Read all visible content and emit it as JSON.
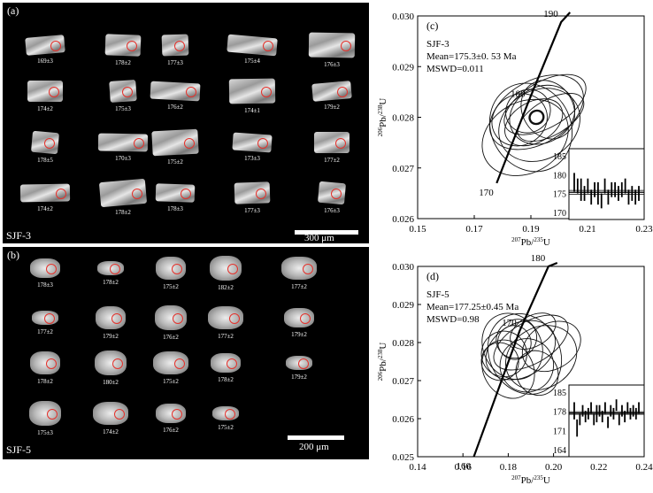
{
  "panel_a": {
    "label": "(a)",
    "sample": "SJF-3",
    "scale": "300 μm",
    "rows": [
      [
        "169±3",
        "178±2",
        "177±3",
        "175±4",
        "176±3"
      ],
      [
        "174±2",
        "175±3",
        "176±2",
        "174±1",
        "179±2"
      ],
      [
        "178±5",
        "170±3",
        "175±2",
        "173±3",
        "177±2"
      ],
      [
        "174±2",
        "178±2",
        "178±3",
        "177±3",
        "176±3"
      ]
    ]
  },
  "panel_b": {
    "label": "(b)",
    "sample": "SJF-5",
    "scale": "200 μm",
    "rows": [
      [
        "178±3",
        "178±2",
        "175±2",
        "182±2",
        "177±2"
      ],
      [
        "177±2",
        "179±2",
        "176±2",
        "177±2",
        "179±2"
      ],
      [
        "178±2",
        "180±2",
        "175±2",
        "178±2",
        "179±2"
      ],
      [
        "175±3",
        "174±2",
        "176±2",
        "175±2"
      ]
    ]
  },
  "chart_data": [
    {
      "type": "scatter",
      "panel": "(c)",
      "annotations": [
        "SJF-3",
        "Mean=175.3±0. 53 Ma",
        "MSWD=0.011"
      ],
      "xlabel_parts": [
        "207",
        "Pb/",
        "235",
        "U"
      ],
      "ylabel_parts": [
        "206",
        "Pb/",
        "238",
        "U"
      ],
      "xlim": [
        0.15,
        0.23
      ],
      "ylim": [
        0.026,
        0.03
      ],
      "xticks": [
        "0.15",
        "0.17",
        "0.19",
        "0.21",
        "0.23"
      ],
      "yticks": [
        "0.026",
        "0.027",
        "0.028",
        "0.029",
        "0.030"
      ],
      "concordia_ages": [
        "170",
        "180",
        "190"
      ],
      "concordia": [
        [
          0.1779,
          0.0267
        ],
        [
          0.1891,
          0.0283
        ],
        [
          0.2007,
          0.02988
        ]
      ],
      "ellipses": [
        {
          "x": 0.192,
          "y": 0.0281,
          "rx": 0.018,
          "ry": 0.00062
        },
        {
          "x": 0.19,
          "y": 0.0278,
          "rx": 0.014,
          "ry": 0.0009
        },
        {
          "x": 0.195,
          "y": 0.02825,
          "rx": 0.016,
          "ry": 0.00045
        },
        {
          "x": 0.188,
          "y": 0.0276,
          "rx": 0.016,
          "ry": 0.0007
        },
        {
          "x": 0.194,
          "y": 0.02805,
          "rx": 0.012,
          "ry": 0.00055
        },
        {
          "x": 0.191,
          "y": 0.0279,
          "rx": 0.011,
          "ry": 0.0004
        },
        {
          "x": 0.196,
          "y": 0.02815,
          "rx": 0.009,
          "ry": 0.0006
        },
        {
          "x": 0.186,
          "y": 0.02795,
          "rx": 0.01,
          "ry": 0.0005
        },
        {
          "x": 0.197,
          "y": 0.028,
          "rx": 0.013,
          "ry": 0.00035
        },
        {
          "x": 0.189,
          "y": 0.02812,
          "rx": 0.008,
          "ry": 0.00042
        },
        {
          "x": 0.193,
          "y": 0.02785,
          "rx": 0.015,
          "ry": 0.00068
        },
        {
          "x": 0.192,
          "y": 0.028,
          "rx": 0.0025,
          "ry": 0.00013
        }
      ],
      "inset": {
        "yticks": [
          "185",
          "180",
          "175",
          "170"
        ],
        "ylim": [
          168,
          187
        ],
        "mean": 175.3,
        "band": [
          174.8,
          175.8
        ],
        "bars": [
          {
            "v": 178,
            "e": 2.5
          },
          {
            "v": 177,
            "e": 2
          },
          {
            "v": 176,
            "e": 3
          },
          {
            "v": 175,
            "e": 2
          },
          {
            "v": 177,
            "e": 2
          },
          {
            "v": 174,
            "e": 2
          },
          {
            "v": 176,
            "e": 2
          },
          {
            "v": 175,
            "e": 3
          },
          {
            "v": 173,
            "e": 2
          },
          {
            "v": 177,
            "e": 2
          },
          {
            "v": 174,
            "e": 2
          },
          {
            "v": 176,
            "e": 2
          },
          {
            "v": 176,
            "e": 2
          },
          {
            "v": 175,
            "e": 2
          },
          {
            "v": 176,
            "e": 2
          },
          {
            "v": 177,
            "e": 2
          },
          {
            "v": 174,
            "e": 2
          },
          {
            "v": 175,
            "e": 2
          },
          {
            "v": 174,
            "e": 2
          },
          {
            "v": 175,
            "e": 2
          }
        ]
      }
    },
    {
      "type": "scatter",
      "panel": "(d)",
      "annotations": [
        "SJF-5",
        "Mean=177.25±0.45 Ma",
        "MSWD=0.98"
      ],
      "xlabel_parts": [
        "207",
        "Pb/",
        "235",
        "U"
      ],
      "ylabel_parts": [
        "206",
        "Pb/",
        "238",
        "U"
      ],
      "xlim": [
        0.14,
        0.25
      ],
      "ylim": [
        0.025,
        0.03
      ],
      "xticks": [
        "0.14",
        "0.16",
        "0.18",
        "0.20",
        "0.22",
        "0.24"
      ],
      "yticks": [
        "0.025",
        "0.026",
        "0.027",
        "0.028",
        "0.029",
        "0.030"
      ],
      "concordia_ages": [
        "160",
        "170",
        "180"
      ],
      "concordia": [
        [
          0.1673,
          0.025
        ],
        [
          0.1895,
          0.0283
        ],
        [
          0.2035,
          0.03
        ]
      ],
      "ellipses": [
        {
          "x": 0.19,
          "y": 0.0278,
          "rx": 0.018,
          "ry": 0.0007
        },
        {
          "x": 0.186,
          "y": 0.0279,
          "rx": 0.014,
          "ry": 0.0009
        },
        {
          "x": 0.195,
          "y": 0.028,
          "rx": 0.02,
          "ry": 0.00055
        },
        {
          "x": 0.2,
          "y": 0.0276,
          "rx": 0.018,
          "ry": 0.0008
        },
        {
          "x": 0.182,
          "y": 0.0277,
          "rx": 0.011,
          "ry": 0.0006
        },
        {
          "x": 0.193,
          "y": 0.0274,
          "rx": 0.013,
          "ry": 0.0007
        },
        {
          "x": 0.188,
          "y": 0.0281,
          "rx": 0.01,
          "ry": 0.0005
        },
        {
          "x": 0.205,
          "y": 0.0279,
          "rx": 0.015,
          "ry": 0.0006
        },
        {
          "x": 0.184,
          "y": 0.0273,
          "rx": 0.012,
          "ry": 0.0008
        },
        {
          "x": 0.196,
          "y": 0.0283,
          "rx": 0.012,
          "ry": 0.0004
        },
        {
          "x": 0.18,
          "y": 0.0275,
          "rx": 0.009,
          "ry": 0.0005
        },
        {
          "x": 0.192,
          "y": 0.0277,
          "rx": 0.017,
          "ry": 0.0011
        },
        {
          "x": 0.187,
          "y": 0.028,
          "rx": 0.008,
          "ry": 0.00045
        },
        {
          "x": 0.198,
          "y": 0.0272,
          "rx": 0.01,
          "ry": 0.0006
        }
      ],
      "inset": {
        "yticks": [
          "185",
          "178",
          "171",
          "164"
        ],
        "ylim": [
          162,
          187
        ],
        "mean": 177.25,
        "band": [
          176.8,
          177.7
        ],
        "bars": [
          {
            "v": 178,
            "e": 3
          },
          {
            "v": 172,
            "e": 3
          },
          {
            "v": 175,
            "e": 2
          },
          {
            "v": 178,
            "e": 2
          },
          {
            "v": 176,
            "e": 2
          },
          {
            "v": 177,
            "e": 2
          },
          {
            "v": 179,
            "e": 2
          },
          {
            "v": 175,
            "e": 2
          },
          {
            "v": 177,
            "e": 3
          },
          {
            "v": 178,
            "e": 2
          },
          {
            "v": 176,
            "e": 2
          },
          {
            "v": 179,
            "e": 2
          },
          {
            "v": 174,
            "e": 2
          },
          {
            "v": 178,
            "e": 2
          },
          {
            "v": 177,
            "e": 2
          },
          {
            "v": 180,
            "e": 2
          },
          {
            "v": 175,
            "e": 2
          },
          {
            "v": 178,
            "e": 2
          },
          {
            "v": 176,
            "e": 2
          },
          {
            "v": 179,
            "e": 2
          },
          {
            "v": 177,
            "e": 2
          },
          {
            "v": 178,
            "e": 2
          },
          {
            "v": 177,
            "e": 2
          },
          {
            "v": 179,
            "e": 2
          }
        ]
      }
    }
  ]
}
